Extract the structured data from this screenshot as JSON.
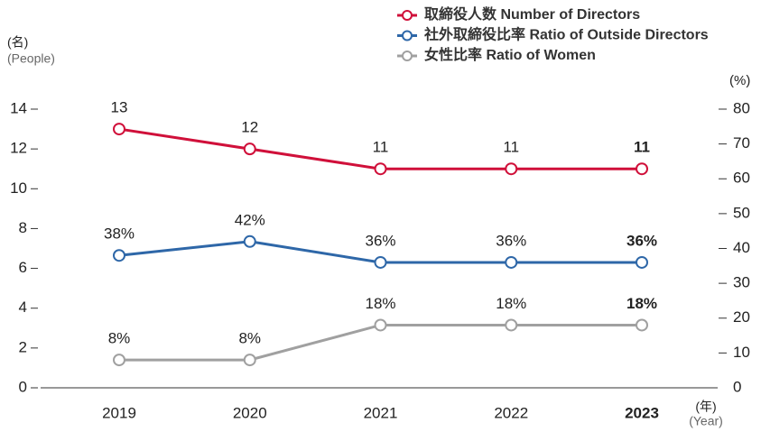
{
  "chart_data": {
    "type": "line",
    "categories": [
      "2019",
      "2020",
      "2021",
      "2022",
      "2023"
    ],
    "series": [
      {
        "name": "取締役人数 Number of Directors",
        "color": "#d0103a",
        "values": [
          13,
          12,
          11,
          11,
          11
        ]
      },
      {
        "name": "社外取締役比率 Ratio of Outside Directors",
        "color": "#2e67a8",
        "axis": "y2",
        "values": [
          38,
          42,
          36,
          36,
          36
        ],
        "value_labels": [
          "38%",
          "42%",
          "36%",
          "36%",
          "36%"
        ]
      },
      {
        "name": "女性比率 Ratio of Women",
        "color": "#a0a0a0",
        "axis": "y2",
        "values": [
          8,
          8,
          18,
          18,
          18
        ],
        "value_labels": [
          "8%",
          "8%",
          "18%",
          "18%",
          "18%"
        ]
      }
    ],
    "ylabel": [
      "(名)",
      "(People)"
    ],
    "y2label": "(%)",
    "xlabel": [
      "(年)",
      "(Year)"
    ],
    "ylim": [
      0,
      14
    ],
    "yticks": [
      0,
      2,
      4,
      6,
      8,
      10,
      12,
      14
    ],
    "y2lim": [
      0,
      80
    ],
    "y2ticks": [
      0,
      10,
      20,
      30,
      40,
      50,
      60,
      70,
      80
    ],
    "grid": false
  }
}
